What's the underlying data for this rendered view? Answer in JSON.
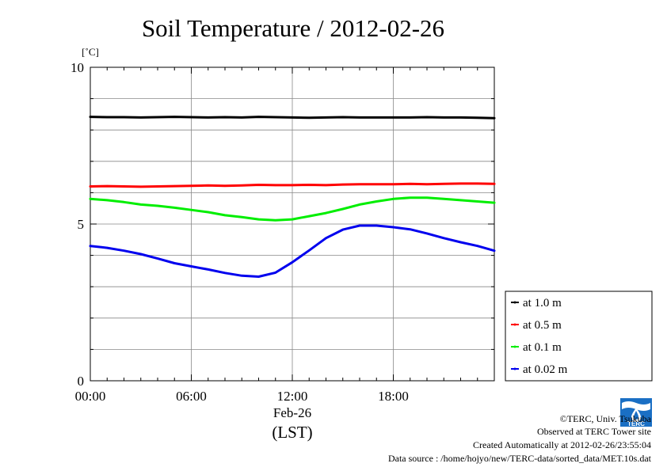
{
  "chart_data": {
    "type": "line",
    "title": "Soil Temperature / 2012-02-26",
    "ylabel": "[˚C]",
    "ylim": [
      0,
      10
    ],
    "xlim": [
      0,
      24
    ],
    "yticks": [
      {
        "value": 0,
        "label": "0"
      },
      {
        "value": 5,
        "label": "5"
      },
      {
        "value": 10,
        "label": "10"
      }
    ],
    "xticks": [
      {
        "value": 0,
        "label": "00:00"
      },
      {
        "value": 6,
        "label": "06:00"
      },
      {
        "value": 12,
        "label": "12:00"
      },
      {
        "value": 18,
        "label": "18:00"
      }
    ],
    "xlabel_date": "Feb-26",
    "xlabel_unit": "(LST)",
    "grid": true,
    "legend_position": "right",
    "series": [
      {
        "name": "at 1.0 m",
        "color": "#000000",
        "x": [
          0,
          1,
          2,
          3,
          4,
          5,
          6,
          7,
          8,
          9,
          10,
          11,
          12,
          13,
          14,
          15,
          16,
          17,
          18,
          19,
          20,
          21,
          22,
          23,
          24
        ],
        "y": [
          8.42,
          8.41,
          8.41,
          8.4,
          8.41,
          8.42,
          8.41,
          8.4,
          8.41,
          8.4,
          8.42,
          8.41,
          8.4,
          8.39,
          8.4,
          8.41,
          8.4,
          8.4,
          8.4,
          8.4,
          8.41,
          8.4,
          8.4,
          8.39,
          8.38
        ]
      },
      {
        "name": "at 0.5 m",
        "color": "#ff0000",
        "x": [
          0,
          1,
          2,
          3,
          4,
          5,
          6,
          7,
          8,
          9,
          10,
          11,
          12,
          13,
          14,
          15,
          16,
          17,
          18,
          19,
          20,
          21,
          22,
          23,
          24
        ],
        "y": [
          6.2,
          6.21,
          6.2,
          6.19,
          6.2,
          6.21,
          6.22,
          6.23,
          6.22,
          6.23,
          6.25,
          6.24,
          6.24,
          6.25,
          6.24,
          6.26,
          6.27,
          6.27,
          6.27,
          6.28,
          6.27,
          6.28,
          6.29,
          6.29,
          6.28
        ]
      },
      {
        "name": "at 0.1 m",
        "color": "#00ee00",
        "x": [
          0,
          1,
          2,
          3,
          4,
          5,
          6,
          7,
          8,
          9,
          10,
          11,
          12,
          13,
          14,
          15,
          16,
          17,
          18,
          19,
          20,
          21,
          22,
          23,
          24
        ],
        "y": [
          5.8,
          5.76,
          5.7,
          5.62,
          5.58,
          5.52,
          5.45,
          5.38,
          5.28,
          5.22,
          5.15,
          5.12,
          5.15,
          5.25,
          5.35,
          5.48,
          5.62,
          5.72,
          5.8,
          5.84,
          5.84,
          5.8,
          5.76,
          5.72,
          5.68
        ]
      },
      {
        "name": "at 0.02 m",
        "color": "#0000ee",
        "x": [
          0,
          1,
          2,
          3,
          4,
          5,
          6,
          7,
          8,
          9,
          10,
          11,
          12,
          13,
          14,
          15,
          16,
          17,
          18,
          19,
          20,
          21,
          22,
          23,
          24
        ],
        "y": [
          4.3,
          4.24,
          4.15,
          4.04,
          3.9,
          3.75,
          3.65,
          3.55,
          3.44,
          3.35,
          3.32,
          3.45,
          3.78,
          4.16,
          4.55,
          4.82,
          4.95,
          4.95,
          4.9,
          4.83,
          4.7,
          4.55,
          4.42,
          4.3,
          4.15
        ]
      }
    ]
  },
  "footer": {
    "copyright": "©TERC, Univ. Tsukuba",
    "observed": "Observed at TERC Tower site",
    "created": "Created Automatically at 2012-02-26/23:55:04",
    "source": "Data source : /home/hojyo/new/TERC-data/sorted_data/MET.10s.dat"
  },
  "logo": {
    "name": "terc-logo",
    "text": "TERC",
    "color": "#1a6fc4"
  }
}
